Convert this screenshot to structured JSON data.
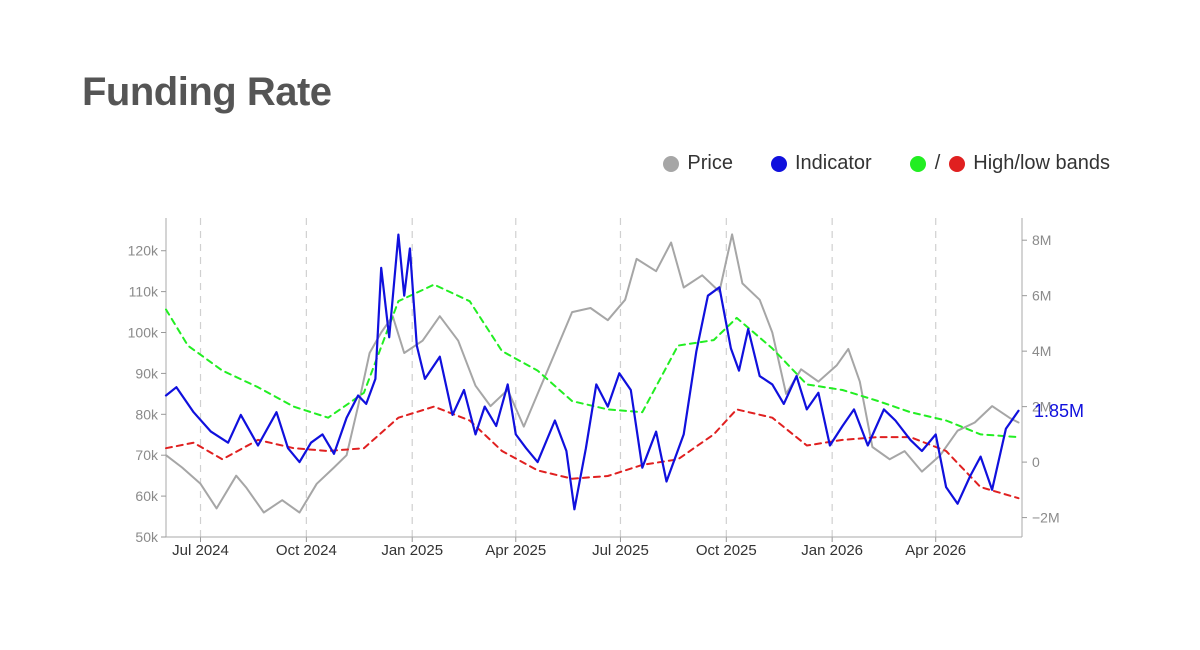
{
  "page": {
    "title": "Funding Rate"
  },
  "legend": {
    "price_label": "Price",
    "indicator_label": "Indicator",
    "bands_separator": "/",
    "bands_label": "High/low bands"
  },
  "colors": {
    "price": "#a6a6a6",
    "indicator": "#1010dd",
    "high_band": "#22ee22",
    "low_band": "#e02020",
    "grid": "#d0d0d0",
    "axis_text": "#8a8a8a"
  },
  "chart_data": {
    "type": "line",
    "x_ticks": [
      "Jul 2024",
      "Oct 2024",
      "Jan 2025",
      "Apr 2025",
      "Jul 2025",
      "Oct 2025",
      "Jan 2026",
      "Apr 2026"
    ],
    "x_range": [
      "2024-06-01",
      "2026-06-15"
    ],
    "y_left": {
      "range": [
        50000,
        128000
      ],
      "ticks": [
        50000,
        60000,
        70000,
        80000,
        90000,
        100000,
        110000,
        120000
      ],
      "tick_labels": [
        "50k",
        "60k",
        "70k",
        "80k",
        "90k",
        "100k",
        "110k",
        "120k"
      ]
    },
    "y_right": {
      "range": [
        -2700000,
        8800000
      ],
      "ticks": [
        -2000000,
        0,
        2000000,
        4000000,
        6000000,
        8000000
      ],
      "tick_labels": [
        "−2M",
        "0",
        "2M",
        "4M",
        "6M",
        "8M"
      ]
    },
    "last_value_label": "1.85M",
    "grid": "vertical dashed",
    "legend_position": "top-right",
    "series": [
      {
        "name": "Price",
        "axis": "left",
        "points": [
          [
            "2024-06-01",
            70000
          ],
          [
            "2024-06-15",
            67000
          ],
          [
            "2024-07-01",
            63000
          ],
          [
            "2024-07-15",
            57000
          ],
          [
            "2024-08-01",
            65000
          ],
          [
            "2024-08-10",
            62000
          ],
          [
            "2024-08-25",
            56000
          ],
          [
            "2024-09-10",
            59000
          ],
          [
            "2024-09-25",
            56000
          ],
          [
            "2024-10-10",
            63000
          ],
          [
            "2024-10-25",
            67000
          ],
          [
            "2024-11-05",
            70000
          ],
          [
            "2024-11-15",
            82000
          ],
          [
            "2024-11-25",
            95000
          ],
          [
            "2024-12-05",
            100000
          ],
          [
            "2024-12-15",
            104000
          ],
          [
            "2024-12-25",
            95000
          ],
          [
            "2025-01-10",
            98000
          ],
          [
            "2025-01-25",
            104000
          ],
          [
            "2025-02-10",
            98000
          ],
          [
            "2025-02-25",
            87000
          ],
          [
            "2025-03-10",
            82000
          ],
          [
            "2025-03-25",
            86000
          ],
          [
            "2025-04-08",
            77000
          ],
          [
            "2025-04-20",
            85000
          ],
          [
            "2025-05-05",
            95000
          ],
          [
            "2025-05-20",
            105000
          ],
          [
            "2025-06-05",
            106000
          ],
          [
            "2025-06-20",
            103000
          ],
          [
            "2025-07-05",
            108000
          ],
          [
            "2025-07-15",
            118000
          ],
          [
            "2025-08-01",
            115000
          ],
          [
            "2025-08-14",
            122000
          ],
          [
            "2025-08-25",
            111000
          ],
          [
            "2025-09-10",
            114000
          ],
          [
            "2025-09-25",
            110000
          ],
          [
            "2025-10-06",
            124000
          ],
          [
            "2025-10-15",
            112000
          ],
          [
            "2025-10-30",
            108000
          ],
          [
            "2025-11-10",
            100000
          ],
          [
            "2025-11-22",
            85000
          ],
          [
            "2025-12-05",
            91000
          ],
          [
            "2025-12-20",
            88000
          ],
          [
            "2026-01-05",
            92000
          ],
          [
            "2026-01-15",
            96000
          ],
          [
            "2026-01-25",
            88000
          ],
          [
            "2026-02-05",
            72000
          ],
          [
            "2026-02-20",
            69000
          ],
          [
            "2026-03-05",
            71000
          ],
          [
            "2026-03-20",
            66000
          ],
          [
            "2026-04-05",
            70000
          ],
          [
            "2026-04-20",
            76000
          ],
          [
            "2026-05-05",
            78000
          ],
          [
            "2026-05-20",
            82000
          ],
          [
            "2026-06-05",
            79000
          ],
          [
            "2026-06-12",
            78000
          ]
        ]
      },
      {
        "name": "Indicator",
        "axis": "right",
        "points": [
          [
            "2024-06-01",
            2400000
          ],
          [
            "2024-06-10",
            2700000
          ],
          [
            "2024-06-25",
            1800000
          ],
          [
            "2024-07-10",
            1100000
          ],
          [
            "2024-07-25",
            700000
          ],
          [
            "2024-08-05",
            1700000
          ],
          [
            "2024-08-20",
            600000
          ],
          [
            "2024-09-05",
            1800000
          ],
          [
            "2024-09-15",
            500000
          ],
          [
            "2024-09-25",
            0
          ],
          [
            "2024-10-05",
            700000
          ],
          [
            "2024-10-15",
            1000000
          ],
          [
            "2024-10-25",
            300000
          ],
          [
            "2024-11-05",
            1600000
          ],
          [
            "2024-11-15",
            2400000
          ],
          [
            "2024-11-22",
            2100000
          ],
          [
            "2024-11-30",
            3000000
          ],
          [
            "2024-12-05",
            7000000
          ],
          [
            "2024-12-12",
            4500000
          ],
          [
            "2024-12-20",
            8200000
          ],
          [
            "2024-12-25",
            6000000
          ],
          [
            "2024-12-30",
            7700000
          ],
          [
            "2025-01-05",
            4200000
          ],
          [
            "2025-01-12",
            3000000
          ],
          [
            "2025-01-25",
            3800000
          ],
          [
            "2025-02-05",
            1700000
          ],
          [
            "2025-02-15",
            2600000
          ],
          [
            "2025-02-25",
            1000000
          ],
          [
            "2025-03-05",
            2000000
          ],
          [
            "2025-03-15",
            1300000
          ],
          [
            "2025-03-25",
            2800000
          ],
          [
            "2025-04-01",
            1000000
          ],
          [
            "2025-04-10",
            500000
          ],
          [
            "2025-04-20",
            0
          ],
          [
            "2025-05-05",
            1500000
          ],
          [
            "2025-05-15",
            400000
          ],
          [
            "2025-05-22",
            -1700000
          ],
          [
            "2025-06-01",
            500000
          ],
          [
            "2025-06-10",
            2800000
          ],
          [
            "2025-06-20",
            2000000
          ],
          [
            "2025-06-30",
            3200000
          ],
          [
            "2025-07-10",
            2600000
          ],
          [
            "2025-07-20",
            -200000
          ],
          [
            "2025-08-01",
            1100000
          ],
          [
            "2025-08-10",
            -700000
          ],
          [
            "2025-08-25",
            1000000
          ],
          [
            "2025-09-05",
            4000000
          ],
          [
            "2025-09-15",
            6000000
          ],
          [
            "2025-09-25",
            6300000
          ],
          [
            "2025-10-05",
            4100000
          ],
          [
            "2025-10-12",
            3300000
          ],
          [
            "2025-10-20",
            4800000
          ],
          [
            "2025-10-30",
            3100000
          ],
          [
            "2025-11-10",
            2800000
          ],
          [
            "2025-11-20",
            2100000
          ],
          [
            "2025-12-01",
            3100000
          ],
          [
            "2025-12-10",
            1900000
          ],
          [
            "2025-12-20",
            2500000
          ],
          [
            "2025-12-30",
            600000
          ],
          [
            "2026-01-10",
            1300000
          ],
          [
            "2026-01-20",
            1900000
          ],
          [
            "2026-02-01",
            600000
          ],
          [
            "2026-02-15",
            1900000
          ],
          [
            "2026-02-25",
            1500000
          ],
          [
            "2026-03-10",
            800000
          ],
          [
            "2026-03-20",
            400000
          ],
          [
            "2026-04-01",
            1000000
          ],
          [
            "2026-04-10",
            -900000
          ],
          [
            "2026-04-20",
            -1500000
          ],
          [
            "2026-05-01",
            -500000
          ],
          [
            "2026-05-10",
            200000
          ],
          [
            "2026-05-20",
            -1000000
          ],
          [
            "2026-06-01",
            1200000
          ],
          [
            "2026-06-12",
            1850000
          ]
        ]
      },
      {
        "name": "High band",
        "axis": "right",
        "points": [
          [
            "2024-06-01",
            5500000
          ],
          [
            "2024-06-20",
            4200000
          ],
          [
            "2024-07-20",
            3300000
          ],
          [
            "2024-08-20",
            2700000
          ],
          [
            "2024-09-20",
            2000000
          ],
          [
            "2024-10-20",
            1600000
          ],
          [
            "2024-11-20",
            2500000
          ],
          [
            "2024-12-20",
            5800000
          ],
          [
            "2025-01-20",
            6400000
          ],
          [
            "2025-02-20",
            5800000
          ],
          [
            "2025-03-20",
            4000000
          ],
          [
            "2025-04-20",
            3300000
          ],
          [
            "2025-05-20",
            2200000
          ],
          [
            "2025-06-20",
            1900000
          ],
          [
            "2025-07-20",
            1800000
          ],
          [
            "2025-08-20",
            4200000
          ],
          [
            "2025-09-20",
            4400000
          ],
          [
            "2025-10-10",
            5200000
          ],
          [
            "2025-11-10",
            4100000
          ],
          [
            "2025-12-10",
            2800000
          ],
          [
            "2026-01-10",
            2600000
          ],
          [
            "2026-02-10",
            2200000
          ],
          [
            "2026-03-10",
            1800000
          ],
          [
            "2026-04-10",
            1500000
          ],
          [
            "2026-05-10",
            1000000
          ],
          [
            "2026-06-12",
            900000
          ]
        ]
      },
      {
        "name": "Low band",
        "axis": "right",
        "points": [
          [
            "2024-06-01",
            500000
          ],
          [
            "2024-06-25",
            700000
          ],
          [
            "2024-07-20",
            100000
          ],
          [
            "2024-08-20",
            800000
          ],
          [
            "2024-09-20",
            500000
          ],
          [
            "2024-10-20",
            400000
          ],
          [
            "2024-11-20",
            500000
          ],
          [
            "2024-12-20",
            1600000
          ],
          [
            "2025-01-20",
            2000000
          ],
          [
            "2025-02-20",
            1500000
          ],
          [
            "2025-03-20",
            400000
          ],
          [
            "2025-04-20",
            -300000
          ],
          [
            "2025-05-20",
            -600000
          ],
          [
            "2025-06-20",
            -500000
          ],
          [
            "2025-07-20",
            -100000
          ],
          [
            "2025-08-20",
            100000
          ],
          [
            "2025-09-20",
            1000000
          ],
          [
            "2025-10-10",
            1900000
          ],
          [
            "2025-11-10",
            1600000
          ],
          [
            "2025-12-10",
            600000
          ],
          [
            "2026-01-10",
            800000
          ],
          [
            "2026-02-10",
            900000
          ],
          [
            "2026-03-10",
            900000
          ],
          [
            "2026-04-10",
            400000
          ],
          [
            "2026-05-10",
            -900000
          ],
          [
            "2026-06-12",
            -1300000
          ]
        ]
      }
    ]
  }
}
